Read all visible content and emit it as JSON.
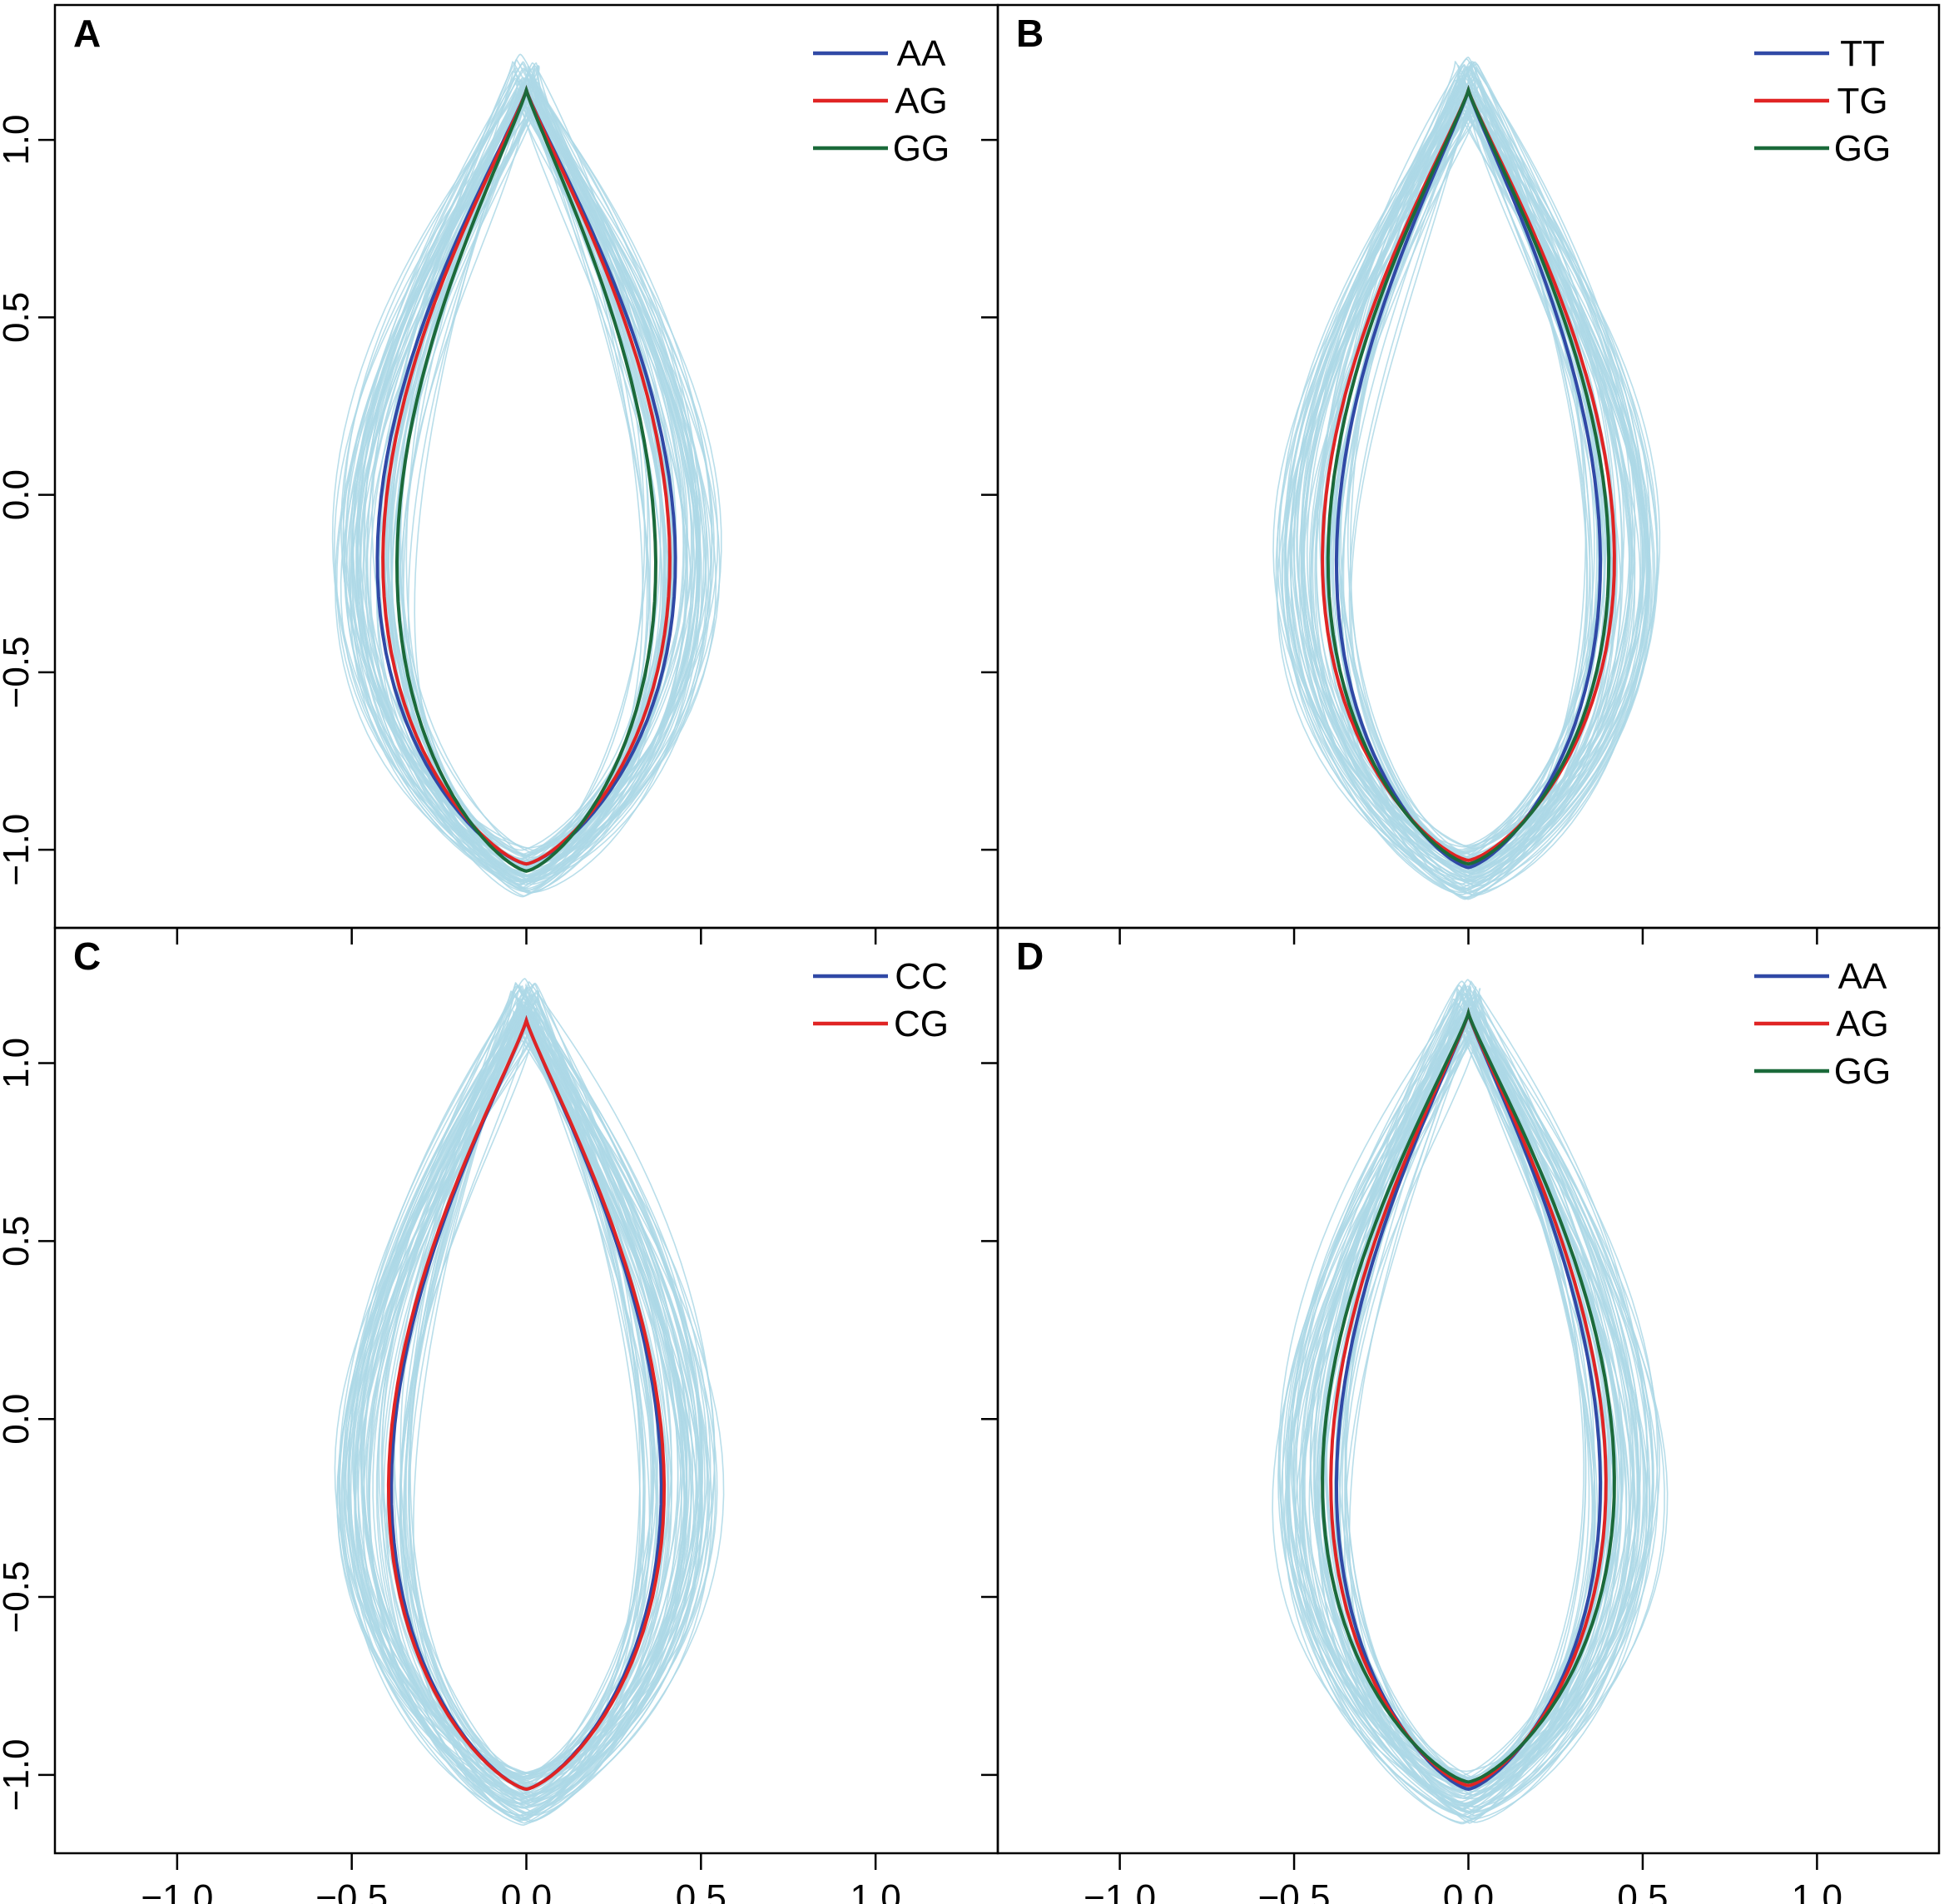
{
  "chart_data": [
    {
      "type": "line",
      "panel": "A",
      "xlim": [
        -1.35,
        1.35
      ],
      "ylim": [
        -1.22,
        1.38
      ],
      "xticks": [
        "-1.0",
        "-0.5",
        "0.0",
        "0.5",
        "1.0"
      ],
      "yticks": [
        "-1.0",
        "-0.5",
        "0.0",
        "0.5",
        "1.0"
      ],
      "background_color": "#add8e6",
      "legend_position": "top-right",
      "series": [
        {
          "name": "AA",
          "color": "#3049a6",
          "top": 1.14,
          "bottom": -1.04,
          "half_width": 0.53
        },
        {
          "name": "AG",
          "color": "#e02424",
          "top": 1.14,
          "bottom": -1.04,
          "half_width": 0.51
        },
        {
          "name": "GG",
          "color": "#1b6a3a",
          "top": 1.14,
          "bottom": -1.06,
          "half_width": 0.46
        }
      ]
    },
    {
      "type": "line",
      "panel": "B",
      "xlim": [
        -1.35,
        1.35
      ],
      "ylim": [
        -1.22,
        1.38
      ],
      "xticks": [
        "-1.0",
        "-0.5",
        "0.0",
        "0.5",
        "1.0"
      ],
      "yticks": [
        "-1.0",
        "-0.5",
        "0.0",
        "0.5",
        "1.0"
      ],
      "background_color": "#add8e6",
      "legend_position": "top-right",
      "series": [
        {
          "name": "TT",
          "color": "#3049a6",
          "top": 1.14,
          "bottom": -1.05,
          "half_width": 0.47
        },
        {
          "name": "TG",
          "color": "#e02424",
          "top": 1.14,
          "bottom": -1.03,
          "half_width": 0.52
        },
        {
          "name": "GG",
          "color": "#1b6a3a",
          "top": 1.14,
          "bottom": -1.04,
          "half_width": 0.5
        }
      ]
    },
    {
      "type": "line",
      "panel": "C",
      "xlim": [
        -1.35,
        1.35
      ],
      "ylim": [
        -1.22,
        1.38
      ],
      "xticks": [
        "-1.0",
        "-0.5",
        "0.0",
        "0.5",
        "1.0"
      ],
      "yticks": [
        "-1.0",
        "-0.5",
        "0.0",
        "0.5",
        "1.0"
      ],
      "background_color": "#add8e6",
      "legend_position": "top-right",
      "series": [
        {
          "name": "CC",
          "color": "#3049a6",
          "top": 1.12,
          "bottom": -1.04,
          "half_width": 0.48
        },
        {
          "name": "CG",
          "color": "#e02424",
          "top": 1.12,
          "bottom": -1.04,
          "half_width": 0.49
        }
      ]
    },
    {
      "type": "line",
      "panel": "D",
      "xlim": [
        -1.35,
        1.35
      ],
      "ylim": [
        -1.22,
        1.38
      ],
      "xticks": [
        "-1.0",
        "-0.5",
        "0.0",
        "0.5",
        "1.0"
      ],
      "yticks": [
        "-1.0",
        "-0.5",
        "0.0",
        "0.5",
        "1.0"
      ],
      "background_color": "#add8e6",
      "legend_position": "top-right",
      "series": [
        {
          "name": "AA",
          "color": "#3049a6",
          "top": 1.14,
          "bottom": -1.04,
          "half_width": 0.47
        },
        {
          "name": "AG",
          "color": "#e02424",
          "top": 1.14,
          "bottom": -1.03,
          "half_width": 0.49
        },
        {
          "name": "GG",
          "color": "#1b6a3a",
          "top": 1.14,
          "bottom": -1.02,
          "half_width": 0.52
        }
      ]
    }
  ]
}
